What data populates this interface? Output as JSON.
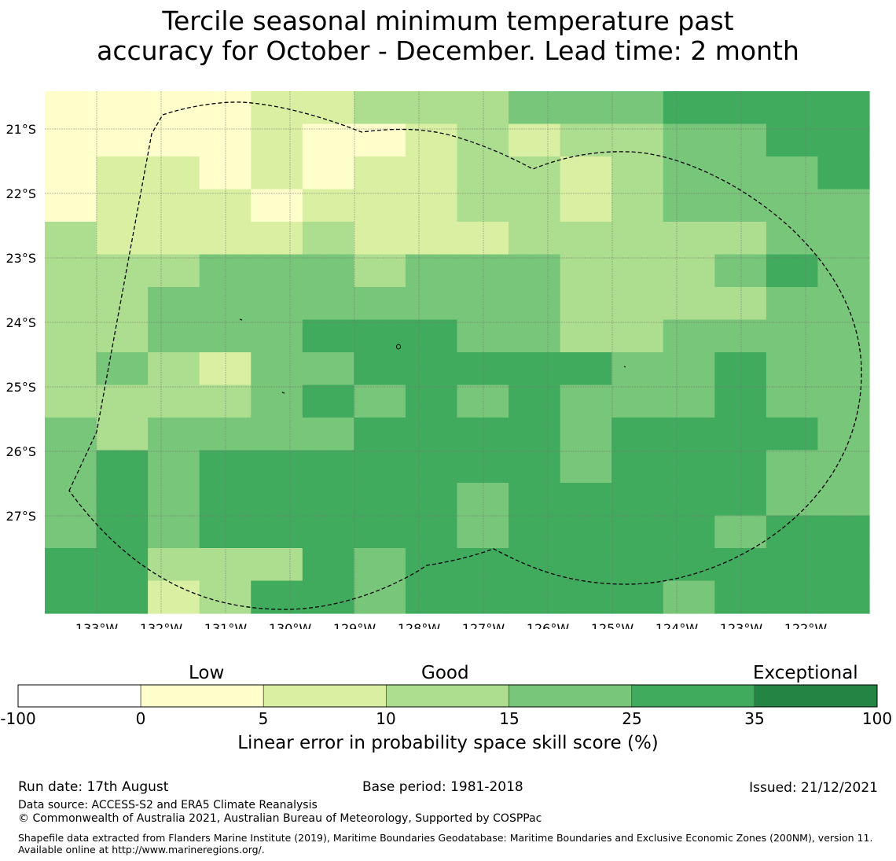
{
  "title": {
    "line1": "Tercile seasonal minimum temperature past",
    "line2": "accuracy for October - December. Lead time: 2 month"
  },
  "map": {
    "lat_labels": [
      "21°S",
      "22°S",
      "23°S",
      "24°S",
      "25°S",
      "26°S",
      "27°S"
    ],
    "lon_labels": [
      "133°W",
      "132°W",
      "131°W",
      "130°W",
      "129°W",
      "128°W",
      "127°W",
      "126°W",
      "125°W",
      "124°W",
      "123°W",
      "122°W"
    ],
    "grid_lines": true,
    "cells": [
      [
        0,
        0,
        0,
        0,
        1,
        1,
        2,
        2,
        2,
        3,
        3,
        3,
        4,
        4,
        4,
        4
      ],
      [
        0,
        0,
        0,
        0,
        1,
        0,
        0,
        1,
        2,
        1,
        2,
        2,
        3,
        3,
        4,
        4
      ],
      [
        0,
        1,
        1,
        0,
        1,
        0,
        1,
        1,
        2,
        2,
        1,
        2,
        3,
        3,
        3,
        4
      ],
      [
        0,
        1,
        1,
        1,
        0,
        1,
        1,
        1,
        2,
        2,
        1,
        2,
        3,
        3,
        3,
        3
      ],
      [
        2,
        1,
        1,
        1,
        1,
        2,
        1,
        1,
        1,
        2,
        2,
        2,
        2,
        2,
        3,
        3
      ],
      [
        2,
        2,
        2,
        3,
        3,
        3,
        2,
        3,
        3,
        3,
        2,
        2,
        2,
        3,
        4,
        3
      ],
      [
        2,
        2,
        3,
        3,
        3,
        3,
        3,
        3,
        3,
        3,
        2,
        2,
        2,
        2,
        3,
        3
      ],
      [
        2,
        2,
        3,
        3,
        3,
        4,
        4,
        4,
        3,
        3,
        2,
        2,
        3,
        3,
        3,
        3
      ],
      [
        2,
        3,
        2,
        1,
        3,
        3,
        4,
        4,
        4,
        4,
        4,
        3,
        3,
        4,
        3,
        3
      ],
      [
        2,
        2,
        2,
        2,
        3,
        4,
        3,
        4,
        3,
        4,
        3,
        3,
        3,
        4,
        3,
        3
      ],
      [
        3,
        2,
        3,
        3,
        3,
        3,
        4,
        4,
        4,
        4,
        3,
        4,
        4,
        4,
        4,
        3
      ],
      [
        3,
        4,
        3,
        4,
        4,
        4,
        4,
        4,
        4,
        4,
        3,
        4,
        4,
        4,
        3,
        3
      ],
      [
        3,
        4,
        3,
        4,
        4,
        4,
        4,
        4,
        3,
        4,
        4,
        4,
        4,
        4,
        3,
        3
      ],
      [
        3,
        4,
        3,
        4,
        4,
        4,
        4,
        4,
        3,
        4,
        4,
        4,
        4,
        3,
        4,
        4
      ],
      [
        4,
        4,
        2,
        2,
        2,
        4,
        3,
        4,
        4,
        4,
        4,
        4,
        4,
        4,
        4,
        4
      ],
      [
        4,
        4,
        1,
        2,
        4,
        4,
        3,
        4,
        4,
        4,
        4,
        4,
        3,
        4,
        4,
        4
      ]
    ]
  },
  "colorbar": {
    "categories": [
      "Low",
      "Good",
      "Exceptional"
    ],
    "ticks": [
      "-100",
      "0",
      "5",
      "10",
      "15",
      "25",
      "35",
      "100"
    ],
    "colors": [
      "#ffffff",
      "#ffffcc",
      "#d9f0a3",
      "#addd8e",
      "#78c679",
      "#41ab5d",
      "#238443"
    ],
    "label": "Linear error in probability space skill score (%)"
  },
  "footer": {
    "run_date": "Run date: 17th August",
    "base_period": "Base period: 1981-2018",
    "issued": "Issued: 21/12/2021",
    "data_source": "Data source: ACCESS-S2 and ERA5 Climate Reanalysis",
    "copyright": "© Commonwealth of Australia 2021, Australian Bureau of Meteorology, Supported by COSPPac",
    "shapefile": "Shapefile data extracted from Flanders Marine Institute (2019), Maritime Boundaries Geodatabase: Maritime Boundaries and Exclusive Economic Zones (200NM), version 11. Available online at http://www.marineregions.org/."
  }
}
